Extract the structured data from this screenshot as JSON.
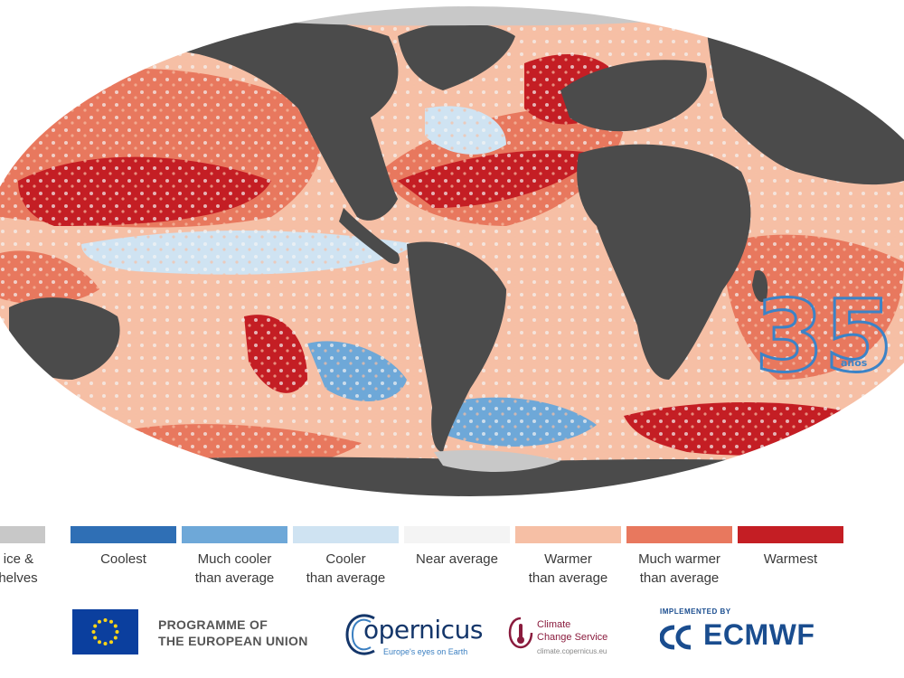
{
  "colors": {
    "land": "#4b4b4b",
    "sea_ice": "#c8c8c8",
    "coolest": "#2f6fb5",
    "much_cooler": "#6ea8d8",
    "cooler": "#cfe3f2",
    "near_average": "#f4f4f4",
    "warmer": "#f6bfa5",
    "much_warmer": "#e8785e",
    "warmest": "#c41e24",
    "anniversary_logo": "#3b83c7"
  },
  "legend": [
    {
      "key": "sea_ice",
      "lines": [
        "ea ice &",
        "e shelves"
      ],
      "color": "#c8c8c8"
    },
    {
      "key": "coolest",
      "lines": [
        "Coolest"
      ],
      "color": "#2f6fb5"
    },
    {
      "key": "much_cooler",
      "lines": [
        "Much cooler",
        "than average"
      ],
      "color": "#6ea8d8"
    },
    {
      "key": "cooler",
      "lines": [
        "Cooler",
        "than average"
      ],
      "color": "#cfe3f2"
    },
    {
      "key": "near_average",
      "lines": [
        "Near average"
      ],
      "color": "#f4f4f4"
    },
    {
      "key": "warmer",
      "lines": [
        "Warmer",
        "than average"
      ],
      "color": "#f6bfa5"
    },
    {
      "key": "much_warmer",
      "lines": [
        "Much warmer",
        "than average"
      ],
      "color": "#e8785e"
    },
    {
      "key": "warmest",
      "lines": [
        "Warmest"
      ],
      "color": "#c41e24"
    }
  ],
  "anniversary": {
    "number": "35",
    "word": "años"
  },
  "logos": {
    "eu_line1": "PROGRAMME OF",
    "eu_line2": "THE EUROPEAN UNION",
    "copernicus_word": "opernicus",
    "copernicus_tag": "Europe's eyes on Earth",
    "c3s_line1": "Climate",
    "c3s_line2": "Change Service",
    "c3s_url": "climate.copernicus.eu",
    "ecmwf_implemented": "IMPLEMENTED BY",
    "ecmwf_word": "ECMWF"
  }
}
